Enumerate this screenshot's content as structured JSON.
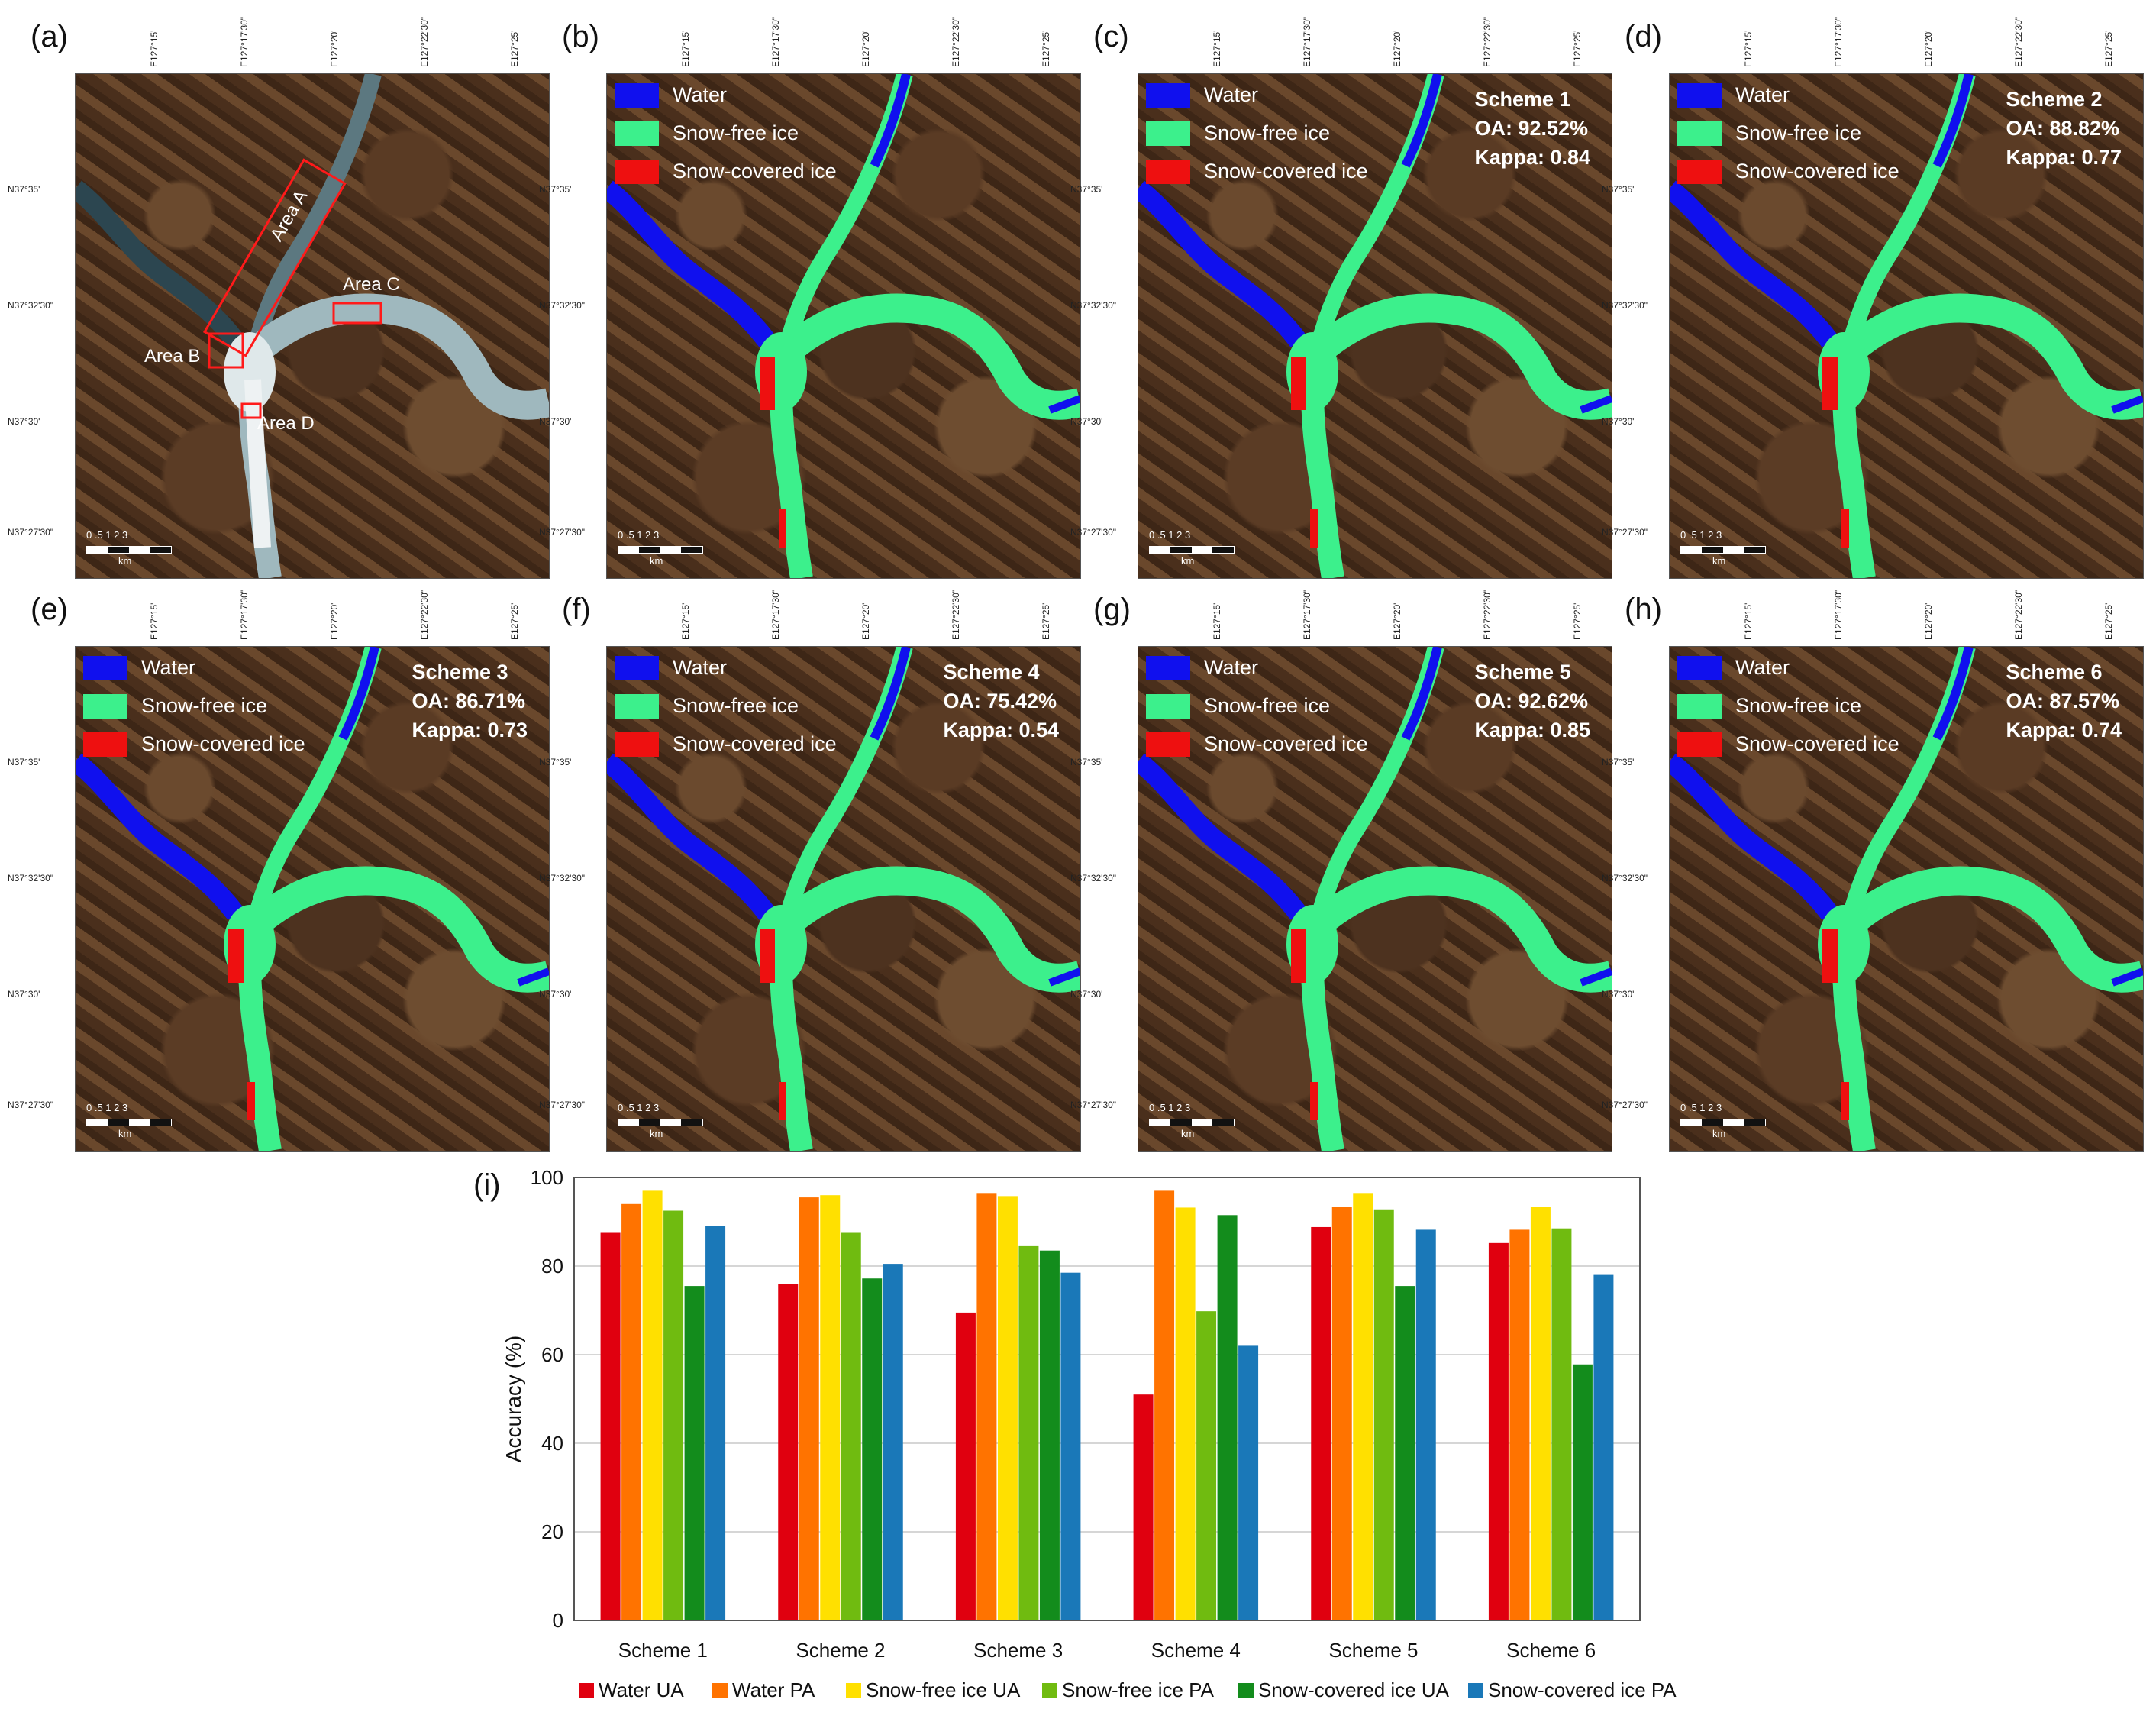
{
  "panels": [
    {
      "letter": "(a)",
      "type": "image"
    },
    {
      "letter": "(b)",
      "type": "map",
      "scheme": "",
      "oa": "",
      "kappa": ""
    },
    {
      "letter": "(c)",
      "type": "map",
      "scheme": "Scheme 1",
      "oa": "OA: 92.52%",
      "kappa": "Kappa: 0.84"
    },
    {
      "letter": "(d)",
      "type": "map",
      "scheme": "Scheme 2",
      "oa": "OA: 88.82%",
      "kappa": "Kappa: 0.77"
    },
    {
      "letter": "(e)",
      "type": "map",
      "scheme": "Scheme 3",
      "oa": "OA: 86.71%",
      "kappa": "Kappa: 0.73"
    },
    {
      "letter": "(f)",
      "type": "map",
      "scheme": "Scheme 4",
      "oa": "OA: 75.42%",
      "kappa": "Kappa: 0.54"
    },
    {
      "letter": "(g)",
      "type": "map",
      "scheme": "Scheme 5",
      "oa": "OA: 92.62%",
      "kappa": "Kappa: 0.85"
    },
    {
      "letter": "(h)",
      "type": "map",
      "scheme": "Scheme 6",
      "oa": "OA: 87.57%",
      "kappa": "Kappa: 0.74"
    }
  ],
  "map_legend": [
    {
      "label": "Water",
      "color": "#1010ee"
    },
    {
      "label": "Snow-free ice",
      "color": "#3cf08c"
    },
    {
      "label": "Snow-covered ice",
      "color": "#ee1010"
    }
  ],
  "top_coords": [
    "E127°15'",
    "E127°17'30\"",
    "E127°20'",
    "E127°22'30\"",
    "E127°25'"
  ],
  "left_coords": [
    "N37°35'",
    "N37°32'30\"",
    "N37°30'",
    "N37°27'30\""
  ],
  "scale": {
    "ticks": "0 .5 1  2     3",
    "unit": "km"
  },
  "areas": [
    "Area A",
    "Area B",
    "Area C",
    "Area D"
  ],
  "chart_letter": "(i)",
  "chart_data": {
    "type": "bar",
    "categories": [
      "Scheme 1",
      "Scheme 2",
      "Scheme 3",
      "Scheme 4",
      "Scheme 5",
      "Scheme 6"
    ],
    "ylabel": "Accuracy (%)",
    "xlabel": "",
    "ylim": [
      0,
      100
    ],
    "yticks": [
      0,
      20,
      40,
      60,
      80,
      100
    ],
    "grid": true,
    "legend_position": "bottom",
    "series": [
      {
        "name": "Water UA",
        "color": "#e0000f",
        "values": [
          87.5,
          76,
          69.5,
          51,
          88.8,
          85.2
        ]
      },
      {
        "name": "Water PA",
        "color": "#ff7300",
        "values": [
          94,
          95.5,
          96.5,
          97,
          93.3,
          88.2
        ]
      },
      {
        "name": "Snow-free ice UA",
        "color": "#ffe000",
        "values": [
          97,
          96,
          95.8,
          93.2,
          96.5,
          93.3
        ]
      },
      {
        "name": "Snow-free ice PA",
        "color": "#70bb10",
        "values": [
          92.5,
          87.5,
          84.5,
          69.8,
          92.8,
          88.5
        ]
      },
      {
        "name": "Snow-covered ice UA",
        "color": "#138c1c",
        "values": [
          75.5,
          77.2,
          83.5,
          91.5,
          75.5,
          57.8
        ]
      },
      {
        "name": "Snow-covered ice PA",
        "color": "#1a78b8",
        "values": [
          89,
          80.5,
          78.5,
          62,
          88.2,
          78
        ]
      }
    ]
  }
}
